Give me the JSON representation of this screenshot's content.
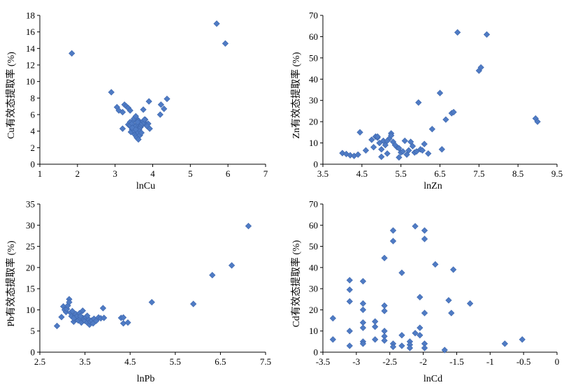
{
  "chart_data": [
    {
      "type": "scatter",
      "xlabel": "lnCu",
      "ylabel": "Cu有效态提取率 (%)",
      "xlim": [
        1,
        7
      ],
      "ylim": [
        0,
        18
      ],
      "xticks": [
        "1",
        "2",
        "3",
        "4",
        "5",
        "6",
        "7"
      ],
      "yticks": [
        "0",
        "2",
        "4",
        "6",
        "8",
        "10",
        "12",
        "14",
        "16",
        "18"
      ],
      "grid": false,
      "marker": "diamond",
      "color": "#4f7bc4",
      "series": [
        {
          "x": [
            1.85,
            5.7,
            5.93,
            2.9,
            3.05,
            3.1,
            3.2,
            3.25,
            3.3,
            3.35,
            3.4,
            3.2,
            3.35,
            3.4,
            3.42,
            3.45,
            3.48,
            3.5,
            3.52,
            3.55,
            3.58,
            3.6,
            3.62,
            3.65,
            3.4,
            3.45,
            3.5,
            3.55,
            3.6,
            3.48,
            3.52,
            3.56,
            3.6,
            3.64,
            3.68,
            3.7,
            3.72,
            3.75,
            3.78,
            3.8,
            3.85,
            3.42,
            3.5,
            3.58,
            3.66,
            3.62,
            3.7,
            3.5,
            3.46,
            3.55,
            3.75,
            3.9,
            3.88,
            3.85,
            3.92,
            4.2,
            4.22,
            4.3,
            4.38,
            3.78,
            3.55
          ],
          "y": [
            13.4,
            17.0,
            14.6,
            8.7,
            6.9,
            6.5,
            6.3,
            7.2,
            7.0,
            6.8,
            6.5,
            4.3,
            4.8,
            5.1,
            4.5,
            4.2,
            4.0,
            3.8,
            4.4,
            4.6,
            5.2,
            4.9,
            5.3,
            5.0,
            4.7,
            4.9,
            5.3,
            5.6,
            5.1,
            3.9,
            3.6,
            3.4,
            3.9,
            4.2,
            4.5,
            4.7,
            4.9,
            5.2,
            5.0,
            5.4,
            4.8,
            3.9,
            4.1,
            3.2,
            3.5,
            3.0,
            3.8,
            5.5,
            4.4,
            5.8,
            6.6,
            7.6,
            4.9,
            4.6,
            4.3,
            6.0,
            7.2,
            6.7,
            7.9,
            5.4,
            4.2
          ]
        }
      ]
    },
    {
      "type": "scatter",
      "xlabel": "lnZn",
      "ylabel": "Zn有效态提取率 (%)",
      "xlim": [
        3.5,
        9.5
      ],
      "ylim": [
        0,
        70
      ],
      "xticks": [
        "3.5",
        "4.5",
        "5.5",
        "6.5",
        "7.5",
        "8.5",
        "9.5"
      ],
      "yticks": [
        "0",
        "10",
        "20",
        "30",
        "40",
        "50",
        "60",
        "70"
      ],
      "grid": false,
      "marker": "diamond",
      "color": "#4f7bc4",
      "series": [
        {
          "x": [
            4.0,
            4.1,
            4.2,
            4.3,
            4.4,
            4.45,
            4.6,
            4.75,
            4.8,
            4.85,
            4.9,
            4.95,
            5.0,
            5.0,
            5.05,
            5.1,
            5.15,
            5.2,
            5.25,
            5.3,
            5.4,
            5.45,
            5.5,
            5.55,
            5.6,
            5.65,
            5.7,
            5.75,
            5.8,
            5.85,
            5.9,
            5.95,
            6.0,
            6.05,
            6.1,
            6.2,
            6.3,
            6.5,
            6.55,
            6.65,
            6.8,
            6.85,
            6.95,
            7.5,
            7.55,
            7.7,
            8.95,
            9.0,
            5.15,
            5.35,
            5.45,
            4.9,
            5.25
          ],
          "y": [
            5.2,
            4.8,
            4.2,
            3.9,
            4.5,
            15.0,
            6.5,
            11.5,
            8.0,
            13.0,
            12.5,
            10.0,
            7.0,
            3.5,
            11.0,
            9.0,
            5.0,
            12.0,
            14.5,
            10.5,
            8.0,
            3.2,
            5.5,
            6.0,
            11.0,
            4.5,
            6.5,
            10.5,
            8.5,
            5.5,
            6.0,
            29.0,
            7.0,
            6.5,
            9.5,
            5.0,
            16.5,
            33.5,
            7.0,
            21.0,
            24.0,
            24.5,
            62.0,
            44.0,
            45.5,
            61.0,
            21.5,
            20.0,
            11.0,
            9.0,
            7.5,
            13.0,
            13.5
          ]
        }
      ]
    },
    {
      "type": "scatter",
      "xlabel": "lnPb",
      "ylabel": "Pb有效态提取率 (%)",
      "xlim": [
        2.5,
        7.5
      ],
      "ylim": [
        0,
        35
      ],
      "xticks": [
        "2.5",
        "3.5",
        "4.5",
        "5.5",
        "6.5",
        "7.5"
      ],
      "yticks": [
        "0",
        "5",
        "10",
        "15",
        "20",
        "25",
        "30",
        "35"
      ],
      "grid": false,
      "marker": "diamond",
      "color": "#4f7bc4",
      "series": [
        {
          "x": [
            2.88,
            2.98,
            3.02,
            3.05,
            3.08,
            3.1,
            3.12,
            3.15,
            3.15,
            3.18,
            3.2,
            3.22,
            3.25,
            3.28,
            3.3,
            3.3,
            3.32,
            3.35,
            3.38,
            3.4,
            3.42,
            3.45,
            3.45,
            3.48,
            3.5,
            3.52,
            3.55,
            3.58,
            3.6,
            3.62,
            3.65,
            3.68,
            3.7,
            3.75,
            3.8,
            3.85,
            3.9,
            3.92,
            4.3,
            4.35,
            4.35,
            4.45,
            4.98,
            5.9,
            6.32,
            6.75,
            7.12,
            3.4,
            3.25,
            3.55
          ],
          "y": [
            6.2,
            8.3,
            10.8,
            10.0,
            9.5,
            10.2,
            11.0,
            12.5,
            11.8,
            9.3,
            8.5,
            9.7,
            7.2,
            8.8,
            9.0,
            7.8,
            8.4,
            7.5,
            9.2,
            8.0,
            7.0,
            8.1,
            9.8,
            7.6,
            7.4,
            8.3,
            7.0,
            7.8,
            6.5,
            7.2,
            7.5,
            6.8,
            7.9,
            7.4,
            8.2,
            8.0,
            10.4,
            8.1,
            8.1,
            8.2,
            6.8,
            7.0,
            11.8,
            11.4,
            18.2,
            20.5,
            29.8,
            8.5,
            8.0,
            8.6
          ]
        }
      ]
    },
    {
      "type": "scatter",
      "xlabel": "lnCd",
      "ylabel": "Cd有效态提取率 (%)",
      "xlim": [
        -3.5,
        0
      ],
      "ylim": [
        0,
        70
      ],
      "xticks": [
        "-3.5",
        "-3",
        "-2.5",
        "-2",
        "-1.5",
        "-1",
        "-0.5",
        "0"
      ],
      "yticks": [
        "0",
        "10",
        "20",
        "30",
        "40",
        "50",
        "60",
        "70"
      ],
      "grid": false,
      "marker": "diamond",
      "color": "#4f7bc4",
      "series": [
        {
          "x": [
            -3.35,
            -3.35,
            -3.1,
            -3.1,
            -3.1,
            -3.1,
            -3.1,
            -2.9,
            -2.9,
            -2.9,
            -2.9,
            -2.9,
            -2.9,
            -2.9,
            -2.72,
            -2.72,
            -2.72,
            -2.58,
            -2.58,
            -2.58,
            -2.58,
            -2.58,
            -2.58,
            -2.45,
            -2.45,
            -2.45,
            -2.45,
            -2.32,
            -2.32,
            -2.32,
            -2.2,
            -2.2,
            -2.2,
            -2.12,
            -2.12,
            -2.05,
            -2.05,
            -2.05,
            -1.98,
            -1.98,
            -1.98,
            -1.98,
            -1.98,
            -1.82,
            -1.68,
            -1.62,
            -1.58,
            -1.55,
            -1.3,
            -0.78,
            -0.52
          ],
          "y": [
            16.0,
            6.0,
            34.0,
            29.5,
            24.0,
            10.0,
            3.0,
            33.5,
            23.0,
            20.0,
            14.0,
            11.5,
            5.0,
            4.0,
            14.5,
            12.0,
            6.0,
            44.5,
            22.0,
            19.5,
            10.0,
            7.5,
            5.5,
            57.5,
            52.5,
            4.0,
            2.5,
            37.5,
            8.0,
            3.0,
            5.0,
            3.5,
            2.0,
            59.5,
            9.0,
            26.0,
            11.5,
            8.0,
            57.5,
            53.5,
            18.5,
            4.0,
            2.0,
            41.5,
            1.0,
            24.5,
            18.5,
            39.0,
            23.0,
            4.0,
            6.0
          ]
        }
      ]
    }
  ]
}
